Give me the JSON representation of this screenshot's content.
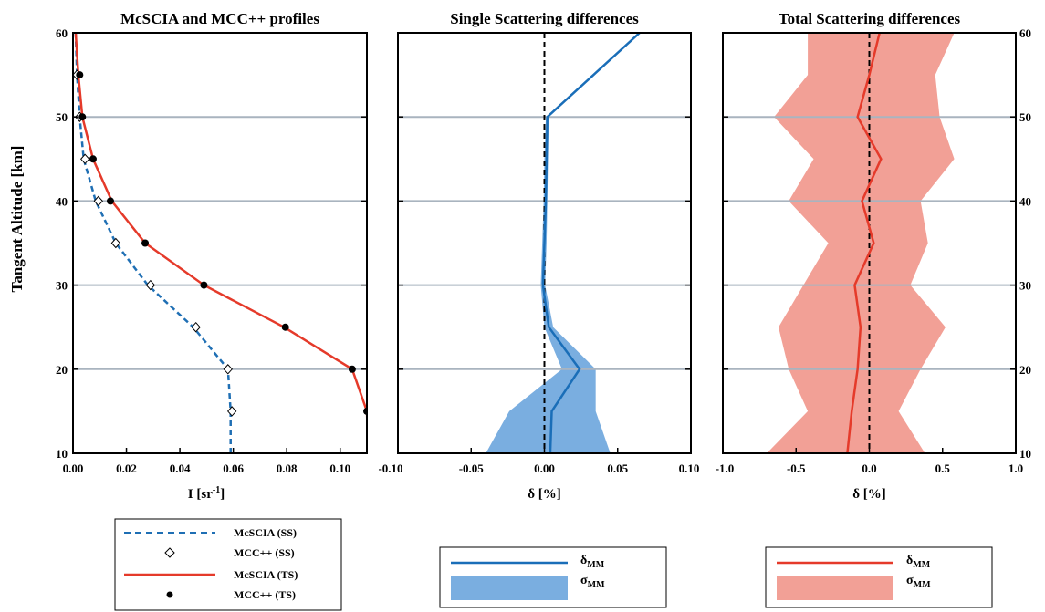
{
  "chart_data": [
    {
      "type": "line",
      "title": "McSCIA and MCC++ profiles",
      "xlabel_base": "I [sr",
      "xlabel_sup": "-1",
      "xlabel_end": "]",
      "ylabel": "Tangent Altitude [km]",
      "xlim": [
        0,
        0.11
      ],
      "ylim": [
        10,
        60
      ],
      "xticks": [
        "0.00",
        "0.02",
        "0.04",
        "0.06",
        "0.08",
        "0.10"
      ],
      "xtick_values": [
        0,
        0.02,
        0.04,
        0.06,
        0.08,
        0.1
      ],
      "yticks": [
        "10",
        "20",
        "30",
        "40",
        "50",
        "60"
      ],
      "ytick_values": [
        10,
        20,
        30,
        40,
        50,
        60
      ],
      "series": [
        {
          "name": "McSCIA (SS)",
          "style": "dashed",
          "color": "#1f6fb4",
          "points": [
            [
              0.059,
              10
            ],
            [
              0.059,
              15
            ],
            [
              0.058,
              20
            ],
            [
              0.045,
              25
            ],
            [
              0.028,
              30
            ],
            [
              0.016,
              35
            ],
            [
              0.0085,
              40
            ],
            [
              0.004,
              45
            ],
            [
              0.0025,
              50
            ],
            [
              0.0015,
              55
            ],
            [
              0.001,
              60
            ]
          ]
        },
        {
          "name": "MCC++ (SS)",
          "marker": "diamond",
          "color": "#000000",
          "points": [
            [
              0.0595,
              15
            ],
            [
              0.058,
              20
            ],
            [
              0.046,
              25
            ],
            [
              0.029,
              30
            ],
            [
              0.016,
              35
            ],
            [
              0.0095,
              40
            ],
            [
              0.0045,
              45
            ],
            [
              0.0025,
              50
            ],
            [
              0.0015,
              55
            ]
          ]
        },
        {
          "name": "McSCIA (TS)",
          "style": "solid",
          "color": "#e53a2a",
          "points": [
            [
              0.1105,
              10
            ],
            [
              0.11,
              15
            ],
            [
              0.1045,
              20
            ],
            [
              0.079,
              25
            ],
            [
              0.049,
              30
            ],
            [
              0.027,
              35
            ],
            [
              0.0145,
              40
            ],
            [
              0.0075,
              45
            ],
            [
              0.0035,
              50
            ],
            [
              0.002,
              55
            ],
            [
              0.001,
              60
            ]
          ]
        },
        {
          "name": "MCC++ (TS)",
          "marker": "dot",
          "color": "#000000",
          "points": [
            [
              0.11,
              15
            ],
            [
              0.1045,
              20
            ],
            [
              0.0795,
              25
            ],
            [
              0.049,
              30
            ],
            [
              0.027,
              35
            ],
            [
              0.014,
              40
            ],
            [
              0.0075,
              45
            ],
            [
              0.0035,
              50
            ],
            [
              0.0025,
              55
            ]
          ]
        }
      ]
    },
    {
      "type": "area",
      "title": "Single Scattering differences",
      "xlabel": "δ [%]",
      "xlim": [
        -0.1,
        0.1
      ],
      "ylim": [
        10,
        60
      ],
      "xticks": [
        "-0.10",
        "-0.05",
        "0.00",
        "0.05",
        "0.10"
      ],
      "xtick_values": [
        -0.1,
        -0.05,
        0,
        0.05,
        0.1
      ],
      "reference_line_x": 0,
      "series": [
        {
          "name": "δMM",
          "color": "#1a6eb8",
          "points": [
            [
              0.004,
              10
            ],
            [
              0.005,
              15
            ],
            [
              0.024,
              20
            ],
            [
              0.003,
              25
            ],
            [
              -0.001,
              30
            ],
            [
              0.0,
              35
            ],
            [
              0.001,
              40
            ],
            [
              0.0015,
              45
            ],
            [
              0.002,
              50
            ],
            [
              0.065,
              60
            ]
          ]
        },
        {
          "name": "σMM",
          "color": "#7aaee0",
          "band": true,
          "upper": [
            [
              0.045,
              10
            ],
            [
              0.035,
              15
            ],
            [
              0.035,
              20
            ],
            [
              0.006,
              25
            ],
            [
              0.0005,
              30
            ],
            [
              0.0015,
              35
            ],
            [
              0.002,
              40
            ],
            [
              0.0025,
              45
            ],
            [
              0.003,
              50
            ],
            [
              0.066,
              60
            ]
          ],
          "lower": [
            [
              -0.04,
              10
            ],
            [
              -0.024,
              15
            ],
            [
              0.012,
              20
            ],
            [
              0.0,
              25
            ],
            [
              -0.0025,
              30
            ],
            [
              -0.0015,
              35
            ],
            [
              -0.0005,
              40
            ],
            [
              0.0,
              45
            ],
            [
              0.001,
              50
            ],
            [
              0.064,
              60
            ]
          ]
        }
      ]
    },
    {
      "type": "area",
      "title": "Total Scattering differences",
      "xlabel": "δ [%]",
      "xlim": [
        -1.0,
        1.0
      ],
      "ylim": [
        10,
        60
      ],
      "xticks": [
        "-1.0",
        "-0.5",
        "0.0",
        "0.5",
        "1.0"
      ],
      "xtick_values": [
        -1.0,
        -0.5,
        0,
        0.5,
        1.0
      ],
      "yticks": [
        "10",
        "20",
        "30",
        "40",
        "50",
        "60"
      ],
      "ytick_values": [
        10,
        20,
        30,
        40,
        50,
        60
      ],
      "reference_line_x": 0,
      "series": [
        {
          "name": "δMM",
          "color": "#e53a2a",
          "points": [
            [
              -0.15,
              10
            ],
            [
              -0.12,
              15
            ],
            [
              -0.08,
              20
            ],
            [
              -0.06,
              25
            ],
            [
              -0.1,
              30
            ],
            [
              0.03,
              35
            ],
            [
              -0.05,
              40
            ],
            [
              0.08,
              45
            ],
            [
              -0.08,
              50
            ],
            [
              0.0,
              55
            ],
            [
              0.07,
              60
            ]
          ]
        },
        {
          "name": "σMM",
          "color": "#f2a096",
          "band": true,
          "upper": [
            [
              0.38,
              10
            ],
            [
              0.2,
              15
            ],
            [
              0.35,
              20
            ],
            [
              0.52,
              25
            ],
            [
              0.28,
              30
            ],
            [
              0.4,
              35
            ],
            [
              0.35,
              40
            ],
            [
              0.58,
              45
            ],
            [
              0.48,
              50
            ],
            [
              0.45,
              55
            ],
            [
              0.58,
              60
            ]
          ],
          "lower": [
            [
              -0.7,
              10
            ],
            [
              -0.42,
              15
            ],
            [
              -0.55,
              20
            ],
            [
              -0.62,
              25
            ],
            [
              -0.45,
              30
            ],
            [
              -0.28,
              35
            ],
            [
              -0.55,
              40
            ],
            [
              -0.38,
              45
            ],
            [
              -0.65,
              50
            ],
            [
              -0.42,
              55
            ],
            [
              -0.42,
              60
            ]
          ]
        }
      ]
    }
  ],
  "legends": [
    {
      "entries": [
        "McSCIA (SS)",
        "MCC++ (SS)",
        "McSCIA (TS)",
        "MCC++ (TS)"
      ]
    },
    {
      "entries": [
        {
          "base": "δ",
          "sub": "MM"
        },
        {
          "base": "σ",
          "sub": "MM"
        }
      ]
    },
    {
      "entries": [
        {
          "base": "δ",
          "sub": "MM"
        },
        {
          "base": "σ",
          "sub": "MM"
        }
      ]
    }
  ],
  "colors": {
    "grid": "#a9b4bf",
    "ss_line": "#1f6fb4",
    "ts_line": "#e53a2a",
    "ss_band": "#7aaee0",
    "ts_band": "#f2a096"
  }
}
